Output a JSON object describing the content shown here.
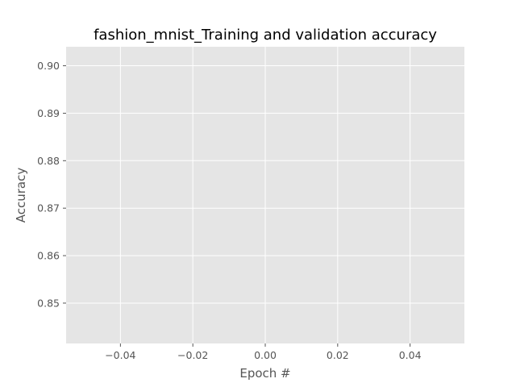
{
  "chart_data": {
    "type": "line",
    "title": "fashion_mnist_Training and validation accuracy",
    "xlabel": "Epoch #",
    "ylabel": "Accuracy",
    "xlim": [
      -0.055,
      0.055
    ],
    "ylim": [
      0.8415,
      0.904
    ],
    "xticks": [
      -0.04,
      -0.02,
      0.0,
      0.02,
      0.04
    ],
    "xtick_labels": [
      "−0.04",
      "−0.02",
      "0.00",
      "0.02",
      "0.04"
    ],
    "yticks": [
      0.85,
      0.86,
      0.87,
      0.88,
      0.89,
      0.9
    ],
    "ytick_labels": [
      "0.85",
      "0.86",
      "0.87",
      "0.88",
      "0.89",
      "0.90"
    ],
    "grid": true,
    "series": [],
    "colors": {
      "plot_background": "#e5e5e5",
      "grid": "#ffffff",
      "tick_text": "#555555",
      "title_text": "#000000"
    }
  }
}
